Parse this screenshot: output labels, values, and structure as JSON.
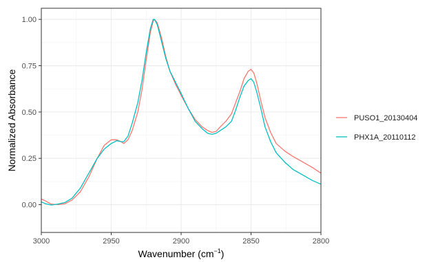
{
  "chart_data": {
    "type": "line",
    "xlabel": "Wavenumber (cm",
    "xlabel_superscript": "−1",
    "xlabel_suffix": ")",
    "ylabel": "Normalized Absorbance",
    "xlim": [
      3000,
      2800
    ],
    "x_reversed": true,
    "ylim": [
      -0.15,
      1.06
    ],
    "x_ticks": [
      3000,
      2950,
      2900,
      2850,
      2800
    ],
    "x_tick_labels": [
      "3000",
      "2950",
      "2900",
      "2850",
      "2800"
    ],
    "y_ticks": [
      0.0,
      0.25,
      0.5,
      0.75,
      1.0
    ],
    "y_tick_labels": [
      "0.00",
      "0.25",
      "0.50",
      "0.75",
      "1.00"
    ],
    "grid": true,
    "legend_position": "right",
    "series": [
      {
        "name": "PUSO1_20130404",
        "color": "#F8766D",
        "points": [
          [
            3000,
            0.03
          ],
          [
            2997,
            0.02
          ],
          [
            2993,
            0.003
          ],
          [
            2988,
            0.0
          ],
          [
            2983,
            0.005
          ],
          [
            2978,
            0.025
          ],
          [
            2972,
            0.07
          ],
          [
            2966,
            0.15
          ],
          [
            2960,
            0.25
          ],
          [
            2955,
            0.32
          ],
          [
            2950,
            0.35
          ],
          [
            2946,
            0.35
          ],
          [
            2943,
            0.34
          ],
          [
            2941,
            0.33
          ],
          [
            2938,
            0.35
          ],
          [
            2935,
            0.4
          ],
          [
            2931,
            0.5
          ],
          [
            2928,
            0.62
          ],
          [
            2925,
            0.78
          ],
          [
            2922,
            0.93
          ],
          [
            2920,
            0.99
          ],
          [
            2919,
            1.0
          ],
          [
            2917,
            0.98
          ],
          [
            2914,
            0.9
          ],
          [
            2911,
            0.8
          ],
          [
            2908,
            0.72
          ],
          [
            2904,
            0.65
          ],
          [
            2900,
            0.59
          ],
          [
            2895,
            0.52
          ],
          [
            2890,
            0.46
          ],
          [
            2885,
            0.42
          ],
          [
            2881,
            0.4
          ],
          [
            2878,
            0.39
          ],
          [
            2875,
            0.395
          ],
          [
            2872,
            0.42
          ],
          [
            2868,
            0.45
          ],
          [
            2864,
            0.49
          ],
          [
            2861,
            0.55
          ],
          [
            2858,
            0.61
          ],
          [
            2855,
            0.68
          ],
          [
            2852,
            0.72
          ],
          [
            2850,
            0.73
          ],
          [
            2848,
            0.71
          ],
          [
            2846,
            0.66
          ],
          [
            2843,
            0.56
          ],
          [
            2840,
            0.47
          ],
          [
            2836,
            0.39
          ],
          [
            2832,
            0.33
          ],
          [
            2826,
            0.29
          ],
          [
            2820,
            0.26
          ],
          [
            2813,
            0.23
          ],
          [
            2806,
            0.2
          ],
          [
            2800,
            0.17
          ]
        ]
      },
      {
        "name": "PHX1A_20110112",
        "color": "#00BFC4",
        "points": [
          [
            3000,
            0.015
          ],
          [
            2997,
            0.005
          ],
          [
            2993,
            -0.002
          ],
          [
            2988,
            0.003
          ],
          [
            2983,
            0.012
          ],
          [
            2978,
            0.035
          ],
          [
            2972,
            0.09
          ],
          [
            2966,
            0.17
          ],
          [
            2960,
            0.25
          ],
          [
            2955,
            0.3
          ],
          [
            2950,
            0.33
          ],
          [
            2946,
            0.345
          ],
          [
            2943,
            0.34
          ],
          [
            2941,
            0.34
          ],
          [
            2938,
            0.37
          ],
          [
            2935,
            0.44
          ],
          [
            2931,
            0.55
          ],
          [
            2928,
            0.67
          ],
          [
            2925,
            0.82
          ],
          [
            2922,
            0.95
          ],
          [
            2920,
            1.0
          ],
          [
            2919,
            1.0
          ],
          [
            2917,
            0.97
          ],
          [
            2914,
            0.88
          ],
          [
            2911,
            0.79
          ],
          [
            2908,
            0.72
          ],
          [
            2904,
            0.66
          ],
          [
            2900,
            0.6
          ],
          [
            2895,
            0.52
          ],
          [
            2890,
            0.45
          ],
          [
            2885,
            0.41
          ],
          [
            2881,
            0.385
          ],
          [
            2878,
            0.38
          ],
          [
            2875,
            0.385
          ],
          [
            2872,
            0.4
          ],
          [
            2868,
            0.42
          ],
          [
            2864,
            0.45
          ],
          [
            2861,
            0.51
          ],
          [
            2858,
            0.58
          ],
          [
            2855,
            0.64
          ],
          [
            2852,
            0.67
          ],
          [
            2850,
            0.68
          ],
          [
            2848,
            0.66
          ],
          [
            2846,
            0.61
          ],
          [
            2843,
            0.52
          ],
          [
            2840,
            0.42
          ],
          [
            2836,
            0.34
          ],
          [
            2832,
            0.28
          ],
          [
            2826,
            0.23
          ],
          [
            2820,
            0.19
          ],
          [
            2813,
            0.16
          ],
          [
            2806,
            0.13
          ],
          [
            2800,
            0.11
          ]
        ]
      }
    ]
  }
}
